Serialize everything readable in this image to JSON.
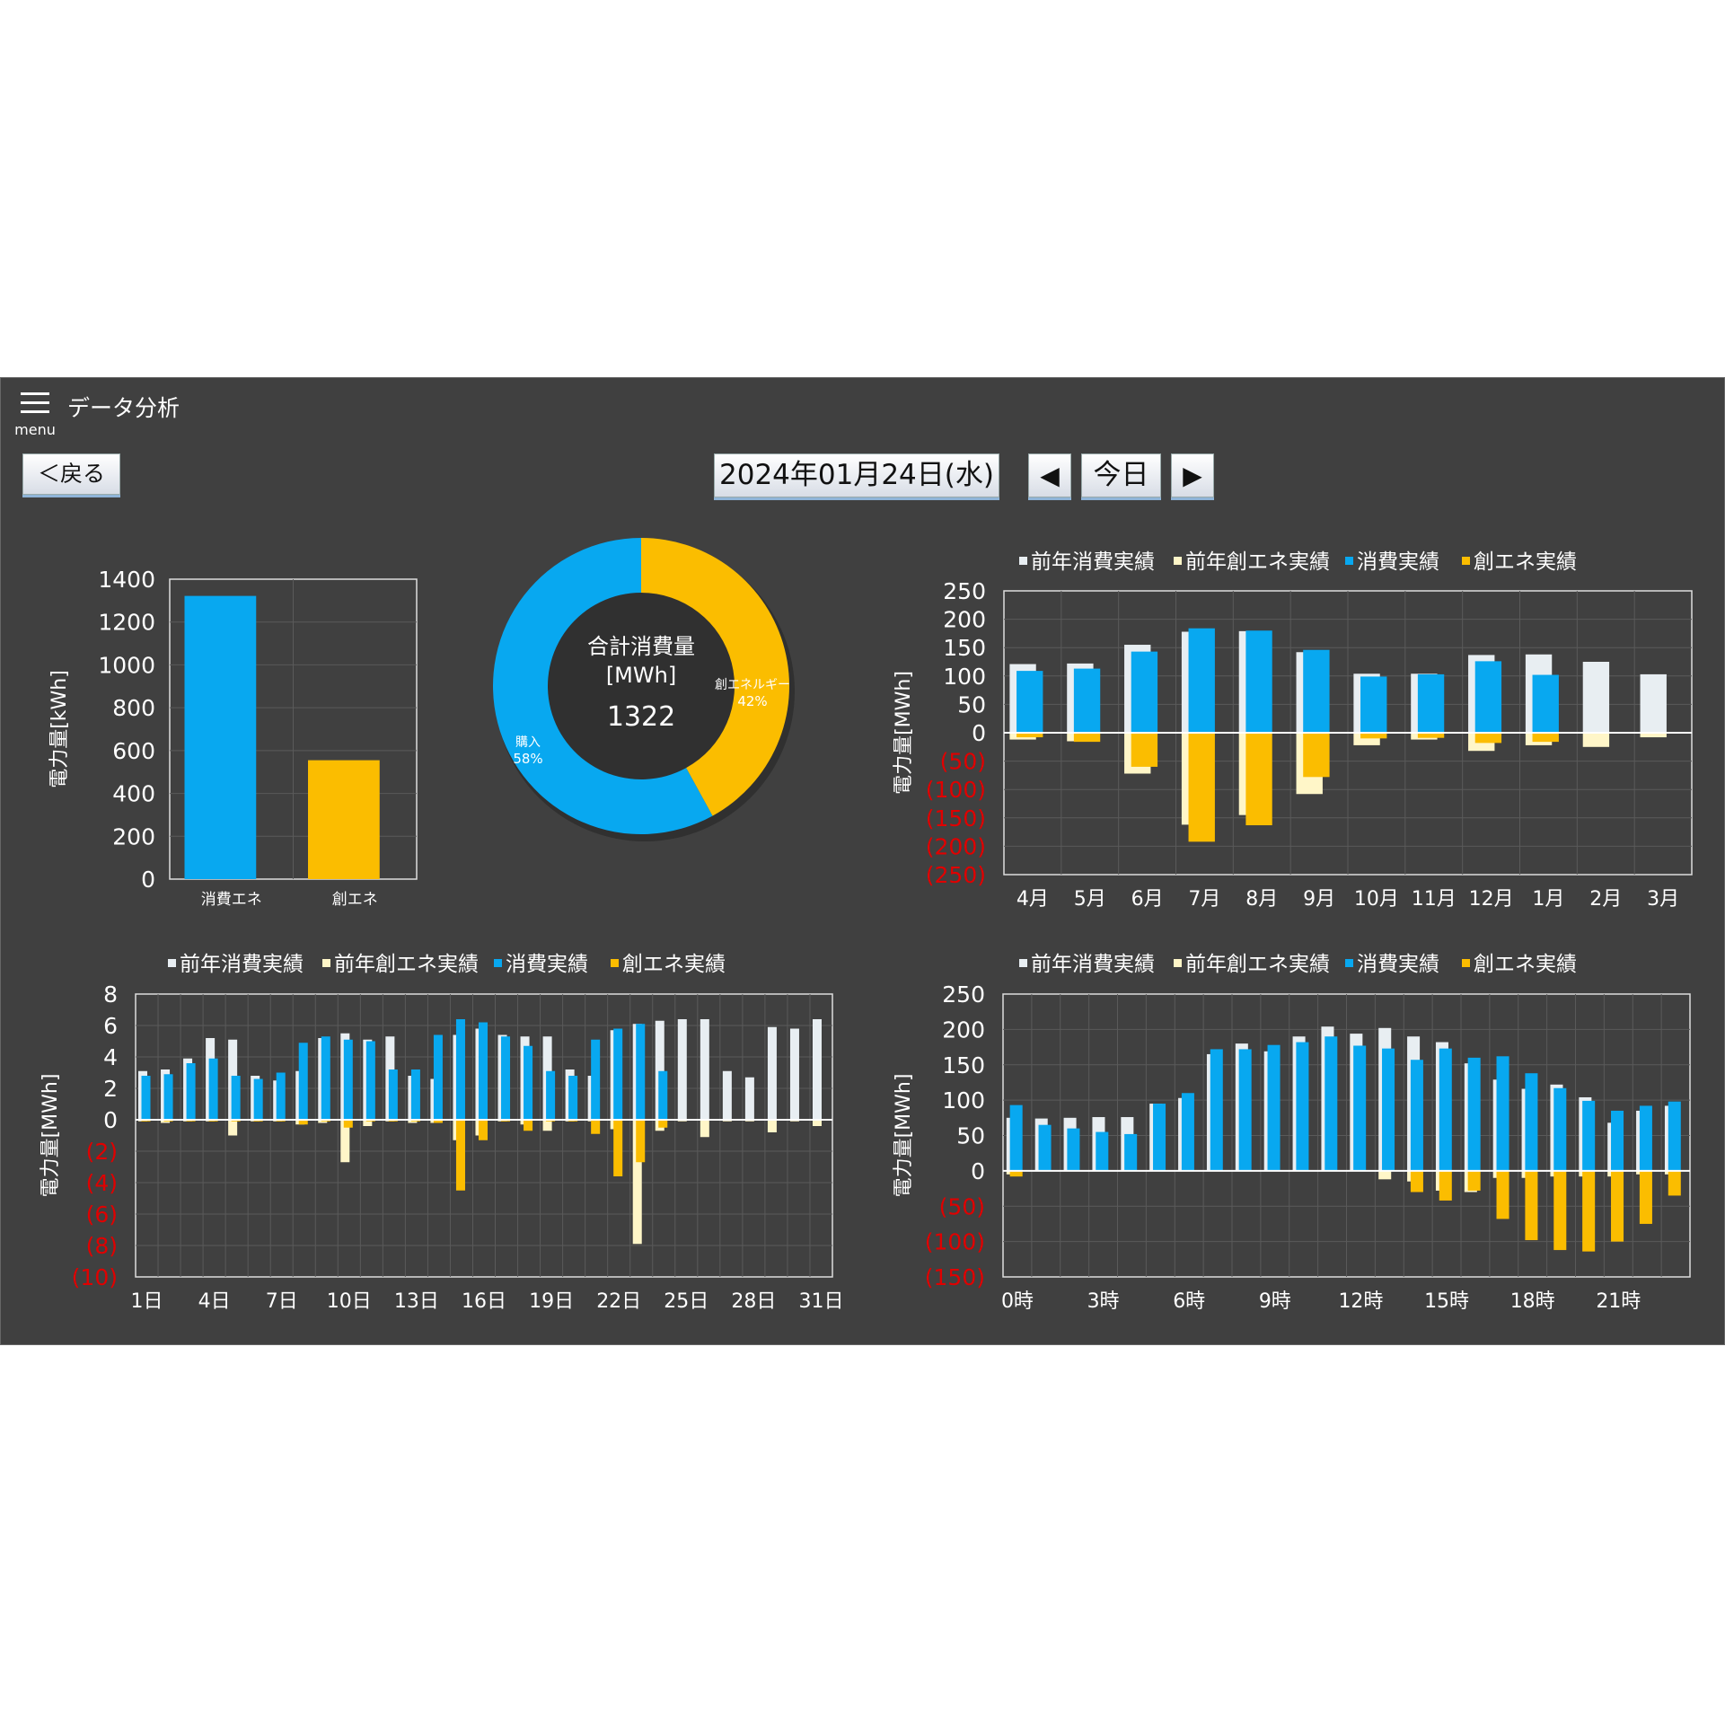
{
  "header": {
    "menu_label": "menu",
    "title": "データ分析"
  },
  "toolbar": {
    "back_label": "＜戻る",
    "date_label": "2024年01月24日(水)",
    "prev_label": "◀",
    "today_label": "今日",
    "next_label": "▶"
  },
  "colors": {
    "prev_consume": "#e8eef2",
    "prev_create": "#fff6c8",
    "consume": "#08a8f0",
    "create": "#fbbd00",
    "negative_text": "#e00000",
    "panel_bg": "#404040"
  },
  "legend_labels": [
    "前年消費実績",
    "前年創エネ実績",
    "消費実績",
    "創エネ実績"
  ],
  "chart_data": [
    {
      "type": "bar",
      "ylabel": "電力量[kWh]",
      "categories": [
        "消費エネ",
        "創エネ"
      ],
      "values": [
        1322,
        555
      ],
      "ylim": [
        0,
        1400
      ],
      "yticks": [
        "0",
        "200",
        "400",
        "600",
        "800",
        "1000",
        "1200",
        "1400"
      ],
      "grid": true
    },
    {
      "type": "pie",
      "center_title": "合計消費量",
      "center_unit": "[MWh]",
      "center_value": "1322",
      "slices": [
        {
          "label": "創エネルギー",
          "pct": "42%",
          "value": 42
        },
        {
          "label": "購入",
          "pct": "58%",
          "value": 58
        }
      ]
    },
    {
      "type": "bar",
      "ylabel": "電力量[MWh]",
      "categories": [
        "4月",
        "5月",
        "6月",
        "7月",
        "8月",
        "9月",
        "10月",
        "11月",
        "12月",
        "1月",
        "2月",
        "3月"
      ],
      "ylim": [
        -250,
        250
      ],
      "yticks": [
        "250",
        "200",
        "150",
        "100",
        "50",
        "0",
        "(50)",
        "(100)",
        "(150)",
        "(200)",
        "(250)"
      ],
      "series": [
        {
          "values": [
            121,
            122,
            155,
            178,
            179,
            142,
            104,
            104,
            137,
            138,
            125,
            103
          ]
        },
        {
          "values": [
            -12,
            -15,
            -72,
            -162,
            -145,
            -108,
            -22,
            -12,
            -32,
            -22,
            -25,
            -8
          ]
        },
        {
          "values": [
            109,
            113,
            143,
            184,
            180,
            146,
            99,
            103,
            126,
            102,
            0,
            0
          ]
        },
        {
          "values": [
            -8,
            -16,
            -60,
            -192,
            -163,
            -78,
            -10,
            -9,
            -18,
            -16,
            0,
            0
          ]
        }
      ],
      "grid": true
    },
    {
      "type": "bar",
      "ylabel": "電力量[MWh]",
      "categories": [
        "1日",
        "2日",
        "3日",
        "4日",
        "5日",
        "6日",
        "7日",
        "8日",
        "9日",
        "10日",
        "11日",
        "12日",
        "13日",
        "14日",
        "15日",
        "16日",
        "17日",
        "18日",
        "19日",
        "20日",
        "21日",
        "22日",
        "23日",
        "24日",
        "25日",
        "26日",
        "27日",
        "28日",
        "29日",
        "30日",
        "31日"
      ],
      "xtick_labels": [
        "1日",
        "4日",
        "7日",
        "10日",
        "13日",
        "16日",
        "19日",
        "22日",
        "25日",
        "28日",
        "31日"
      ],
      "ylim": [
        -10,
        8
      ],
      "yticks": [
        "8",
        "6",
        "4",
        "2",
        "0",
        "(2)",
        "(4)",
        "(6)",
        "(8)",
        "(10)"
      ],
      "series": [
        {
          "values": [
            3.1,
            3.2,
            3.9,
            5.2,
            5.1,
            2.8,
            2.5,
            3.1,
            5.2,
            5.5,
            5.1,
            5.3,
            2.8,
            2.6,
            5.4,
            5.8,
            5.4,
            5.3,
            5.3,
            3.2,
            2.8,
            5.7,
            6.1,
            6.3,
            6.4,
            6.4,
            3.1,
            2.7,
            5.9,
            5.8,
            6.4
          ]
        },
        {
          "values": [
            -0.1,
            -0.2,
            -0.1,
            -0.1,
            -1.0,
            -0.1,
            -0.1,
            -0.3,
            -0.2,
            -2.7,
            -0.4,
            -0.1,
            -0.2,
            -0.2,
            -1.3,
            -1.0,
            -0.1,
            -0.3,
            -0.7,
            -0.1,
            -0.1,
            -0.6,
            -7.9,
            -0.7,
            -0.1,
            -1.1,
            -0.1,
            -0.1,
            -0.8,
            -0.1,
            -0.4
          ]
        },
        {
          "values": [
            2.8,
            2.9,
            3.6,
            3.9,
            2.8,
            2.6,
            3.0,
            4.9,
            5.3,
            5.1,
            5.0,
            3.2,
            3.2,
            5.4,
            6.4,
            6.2,
            5.3,
            4.7,
            3.1,
            2.8,
            5.1,
            5.8,
            6.1,
            3.1,
            0,
            0,
            0,
            0,
            0,
            0,
            0
          ]
        },
        {
          "values": [
            -0.1,
            -0.1,
            -0.1,
            -0.1,
            -0.1,
            -0.1,
            -0.1,
            -0.3,
            -0.1,
            -0.5,
            -0.1,
            -0.1,
            -0.1,
            -0.2,
            -4.5,
            -1.3,
            -0.1,
            -0.7,
            -0.1,
            -0.1,
            -0.9,
            -3.6,
            -2.7,
            -0.5,
            0,
            0,
            0,
            0,
            0,
            0,
            0
          ]
        }
      ],
      "grid": true
    },
    {
      "type": "bar",
      "ylabel": "電力量[MWh]",
      "categories": [
        "0時",
        "1時",
        "2時",
        "3時",
        "4時",
        "5時",
        "6時",
        "7時",
        "8時",
        "9時",
        "10時",
        "11時",
        "12時",
        "13時",
        "14時",
        "15時",
        "16時",
        "17時",
        "18時",
        "19時",
        "20時",
        "21時",
        "22時",
        "23時"
      ],
      "xtick_labels": [
        "0時",
        "3時",
        "6時",
        "9時",
        "12時",
        "15時",
        "18時",
        "21時"
      ],
      "ylim": [
        -150,
        250
      ],
      "yticks": [
        "250",
        "200",
        "150",
        "100",
        "50",
        "0",
        "(50)",
        "(100)",
        "(150)"
      ],
      "series": [
        {
          "values": [
            75,
            74,
            75,
            76,
            76,
            95,
            103,
            165,
            180,
            169,
            190,
            204,
            194,
            202,
            190,
            182,
            152,
            129,
            116,
            122,
            104,
            68,
            85,
            92
          ]
        },
        {
          "values": [
            -5,
            0,
            0,
            0,
            0,
            0,
            0,
            0,
            0,
            0,
            0,
            0,
            0,
            -12,
            -15,
            -28,
            -30,
            -10,
            -10,
            -8,
            -8,
            -8,
            -5,
            -5
          ]
        },
        {
          "values": [
            93,
            65,
            60,
            55,
            52,
            95,
            110,
            172,
            172,
            178,
            182,
            190,
            177,
            173,
            157,
            173,
            160,
            162,
            138,
            117,
            99,
            85,
            92,
            98
          ]
        },
        {
          "values": [
            -8,
            0,
            0,
            0,
            0,
            0,
            0,
            0,
            0,
            0,
            0,
            0,
            0,
            0,
            -30,
            -42,
            -28,
            -68,
            -98,
            -112,
            -114,
            -100,
            -75,
            -35
          ]
        }
      ],
      "grid": true
    }
  ]
}
